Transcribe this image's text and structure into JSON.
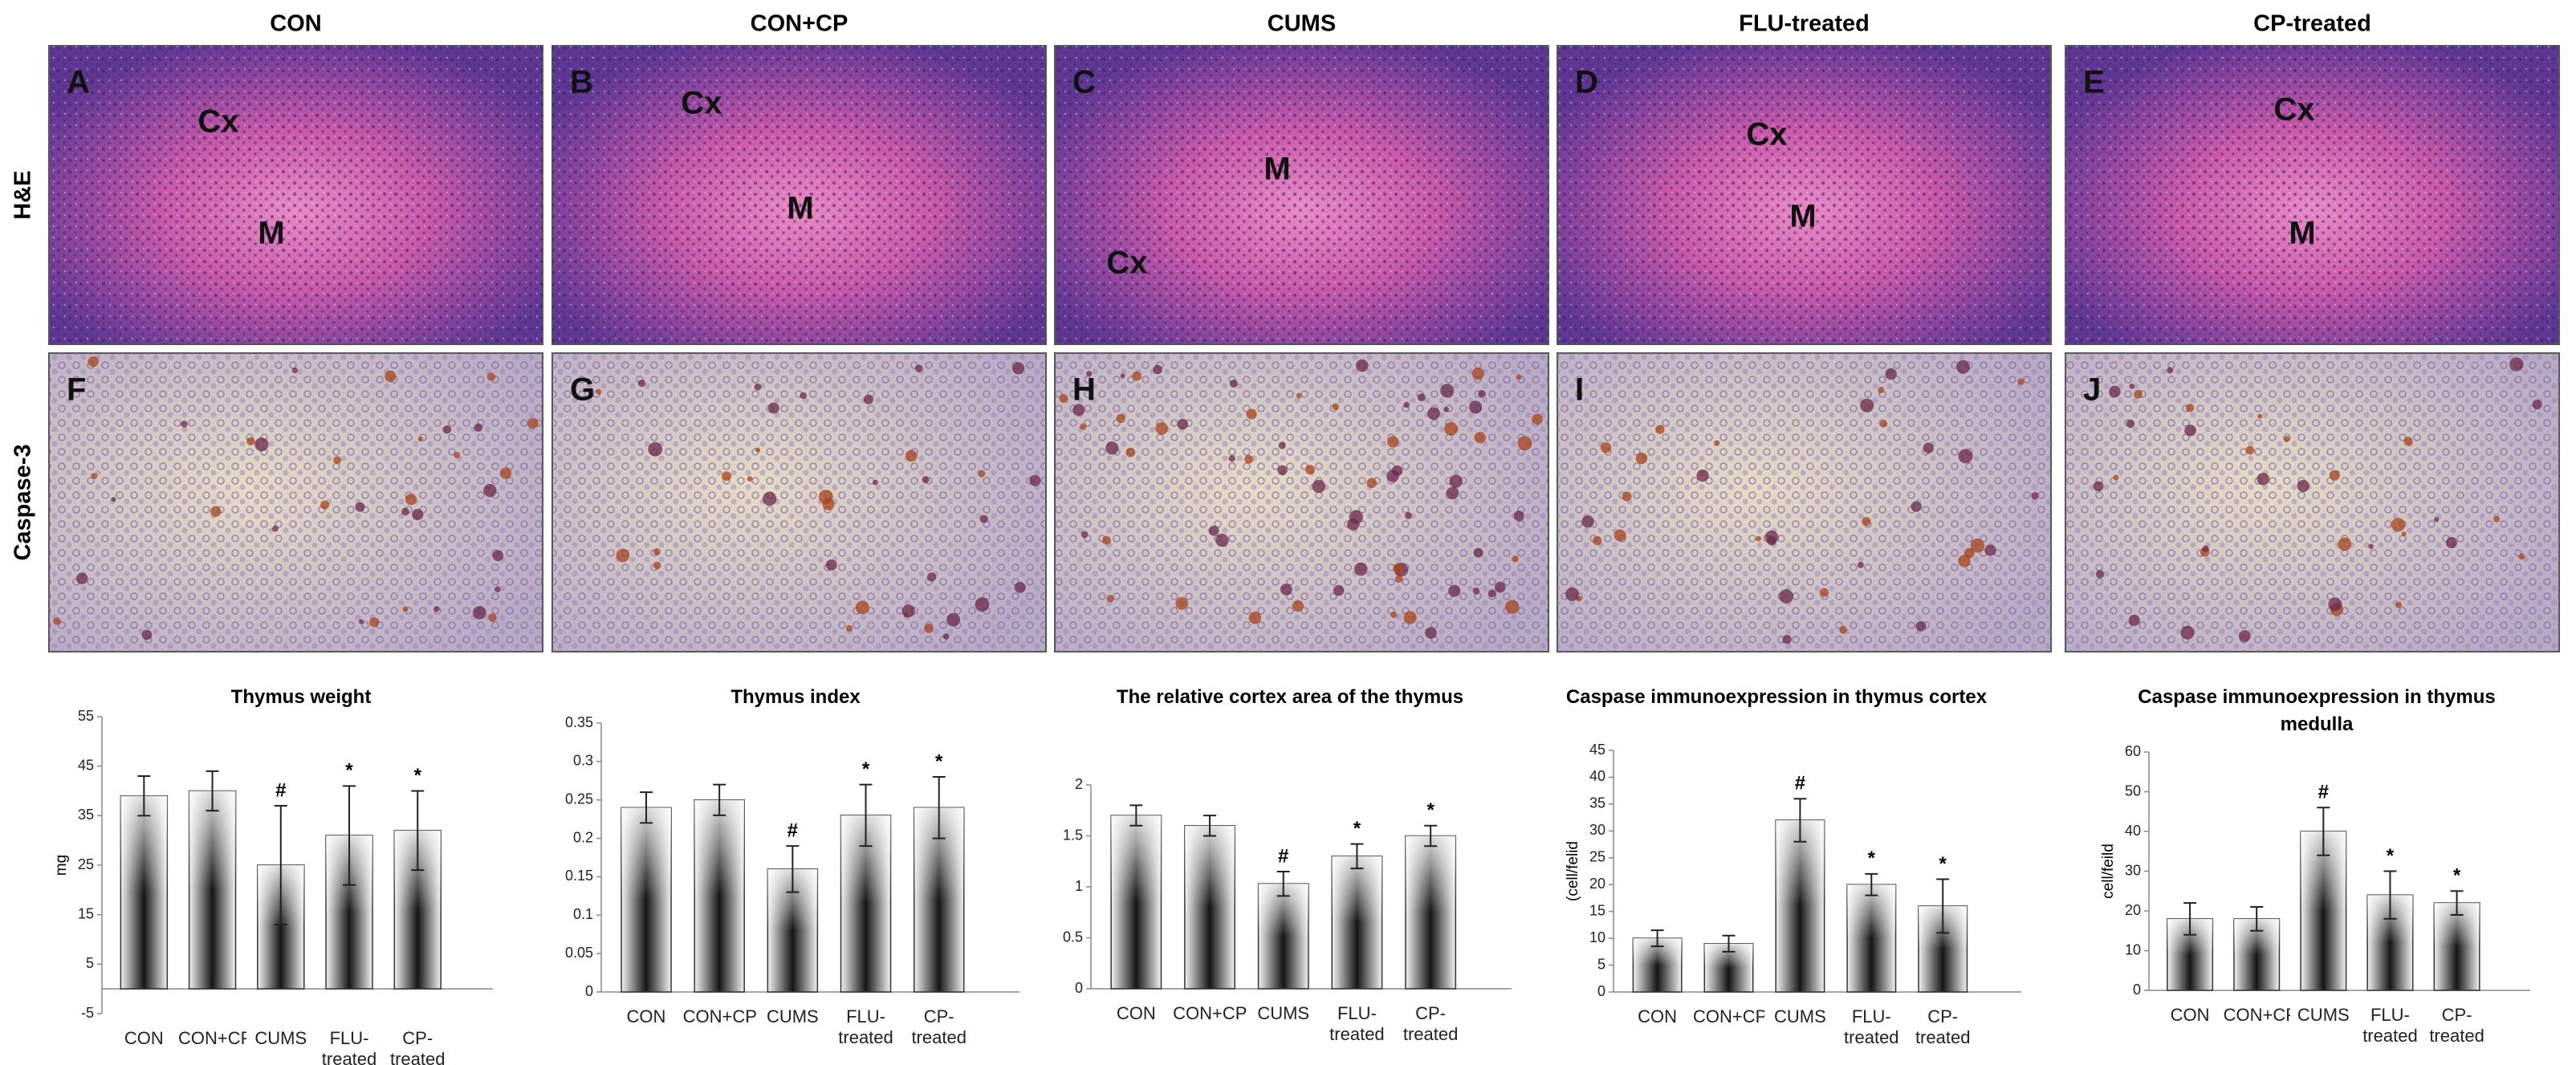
{
  "columns": [
    "CON",
    "CON+CP",
    "CUMS",
    "FLU-treated",
    "CP-treated"
  ],
  "rows": [
    "H&E",
    "Caspase-3"
  ],
  "panels": [
    {
      "letter": "A",
      "labels": [
        "Cx",
        "M"
      ]
    },
    {
      "letter": "B",
      "labels": [
        "Cx",
        "M"
      ]
    },
    {
      "letter": "C",
      "labels": [
        "M",
        "Cx"
      ]
    },
    {
      "letter": "D",
      "labels": [
        "Cx",
        "M"
      ]
    },
    {
      "letter": "E",
      "labels": [
        "Cx",
        "M"
      ]
    },
    {
      "letter": "F",
      "labels": []
    },
    {
      "letter": "G",
      "labels": []
    },
    {
      "letter": "H",
      "labels": []
    },
    {
      "letter": "I",
      "labels": []
    },
    {
      "letter": "J",
      "labels": []
    }
  ],
  "chart_data": [
    {
      "type": "bar",
      "title": "Thymus weight",
      "y_label": "mg",
      "categories": [
        "CON",
        "CON+CP",
        "CUMS",
        "FLU-treated",
        "CP-treated"
      ],
      "values": [
        39,
        40,
        25,
        31,
        32
      ],
      "errors": [
        4,
        4,
        12,
        10,
        8
      ],
      "markers": [
        null,
        null,
        "#",
        "*",
        "*"
      ],
      "ylim": [
        -5,
        55
      ],
      "yticks": [
        -5,
        5,
        15,
        25,
        35,
        45,
        55
      ]
    },
    {
      "type": "bar",
      "title": "Thymus index",
      "categories": [
        "CON",
        "CON+CP",
        "CUMS",
        "FLU-treated",
        "CP-treated"
      ],
      "values": [
        0.24,
        0.25,
        0.16,
        0.23,
        0.24
      ],
      "errors": [
        0.02,
        0.02,
        0.03,
        0.04,
        0.04
      ],
      "markers": [
        null,
        null,
        "#",
        "*",
        "*"
      ],
      "ylim": [
        0,
        0.35
      ],
      "yticks": [
        0,
        0.05,
        0.1,
        0.15,
        0.2,
        0.25,
        0.3,
        0.35
      ]
    },
    {
      "type": "bar",
      "title": "The relative cortex area of the thymus",
      "categories": [
        "CON",
        "CON+CP",
        "CUMS",
        "FLU-treated",
        "CP-treated"
      ],
      "values": [
        1.7,
        1.6,
        1.03,
        1.3,
        1.5
      ],
      "errors": [
        0.1,
        0.1,
        0.12,
        0.12,
        0.1
      ],
      "markers": [
        null,
        null,
        "#",
        "*",
        "*"
      ],
      "ylim": [
        0,
        2
      ],
      "yticks": [
        0,
        0.5,
        1,
        1.5,
        2
      ]
    },
    {
      "type": "bar",
      "title": "Caspase immunoexpression in thymus cortex",
      "y_label": "(cell/felid",
      "categories": [
        "CON",
        "CON+CP",
        "CUMS",
        "FLU-treated",
        "CP-treated"
      ],
      "values": [
        10,
        9,
        32,
        20,
        16
      ],
      "errors": [
        1.5,
        1.5,
        4,
        2,
        5
      ],
      "markers": [
        null,
        null,
        "#",
        "*",
        "*"
      ],
      "ylim": [
        0,
        45
      ],
      "yticks": [
        0,
        5,
        10,
        15,
        20,
        25,
        30,
        35,
        40,
        45
      ]
    },
    {
      "type": "bar",
      "title": "Caspase immunoexpression in thymus medulla",
      "y_label": "cell/feild",
      "categories": [
        "CON",
        "CON+CP",
        "CUMS",
        "FLU-treated",
        "CP-treated"
      ],
      "values": [
        18,
        18,
        40,
        24,
        22
      ],
      "errors": [
        4,
        3,
        6,
        6,
        3
      ],
      "markers": [
        null,
        null,
        "#",
        "*",
        "*"
      ],
      "ylim": [
        0,
        60
      ],
      "yticks": [
        0,
        10,
        20,
        30,
        40,
        50,
        60
      ]
    }
  ]
}
